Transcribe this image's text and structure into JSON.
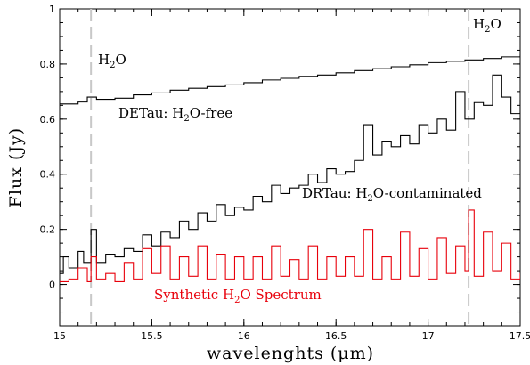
{
  "chart_data": {
    "type": "line",
    "xlabel": "wavelenghts (μm)",
    "ylabel": "Flux (Jy)",
    "xlim": [
      15,
      17.5
    ],
    "ylim": [
      -0.15,
      1.0
    ],
    "x_ticks": [
      "15",
      "15.5",
      "16",
      "16.5",
      "17",
      "17.5"
    ],
    "y_ticks": [
      "0",
      "0.2",
      "0.4",
      "0.6",
      "0.8",
      "1"
    ],
    "grid": false,
    "legend": "none",
    "reference_lines": [
      {
        "x": 15.17,
        "label_main": "H",
        "label_sub": "2",
        "label_tail": "O",
        "color": "#c8c8c8"
      },
      {
        "x": 17.22,
        "label_main": "H",
        "label_sub": "2",
        "label_tail": "O",
        "color": "#c8c8c8"
      }
    ],
    "series": [
      {
        "label_main": "DETau: H",
        "label_sub": "2",
        "label_tail": "O-free",
        "color": "#000000",
        "step": true,
        "points": [
          [
            15.0,
            0.655
          ],
          [
            15.1,
            0.662
          ],
          [
            15.15,
            0.68
          ],
          [
            15.2,
            0.672
          ],
          [
            15.3,
            0.676
          ],
          [
            15.4,
            0.688
          ],
          [
            15.5,
            0.695
          ],
          [
            15.6,
            0.705
          ],
          [
            15.7,
            0.712
          ],
          [
            15.8,
            0.718
          ],
          [
            15.9,
            0.724
          ],
          [
            16.0,
            0.732
          ],
          [
            16.1,
            0.742
          ],
          [
            16.2,
            0.748
          ],
          [
            16.3,
            0.755
          ],
          [
            16.4,
            0.76
          ],
          [
            16.5,
            0.768
          ],
          [
            16.6,
            0.776
          ],
          [
            16.7,
            0.783
          ],
          [
            16.8,
            0.79
          ],
          [
            16.9,
            0.797
          ],
          [
            17.0,
            0.805
          ],
          [
            17.1,
            0.81
          ],
          [
            17.2,
            0.815
          ],
          [
            17.3,
            0.82
          ],
          [
            17.4,
            0.826
          ],
          [
            17.5,
            0.835
          ]
        ]
      },
      {
        "label_main": "DRTau: H",
        "label_sub": "2",
        "label_tail": "O-contaminated",
        "color": "#000000",
        "step": true,
        "points": [
          [
            15.0,
            0.04
          ],
          [
            15.02,
            0.1
          ],
          [
            15.05,
            0.06
          ],
          [
            15.1,
            0.12
          ],
          [
            15.13,
            0.08
          ],
          [
            15.17,
            0.2
          ],
          [
            15.2,
            0.08
          ],
          [
            15.25,
            0.11
          ],
          [
            15.3,
            0.1
          ],
          [
            15.35,
            0.13
          ],
          [
            15.4,
            0.12
          ],
          [
            15.45,
            0.18
          ],
          [
            15.5,
            0.14
          ],
          [
            15.55,
            0.19
          ],
          [
            15.6,
            0.17
          ],
          [
            15.65,
            0.23
          ],
          [
            15.7,
            0.2
          ],
          [
            15.75,
            0.26
          ],
          [
            15.8,
            0.23
          ],
          [
            15.85,
            0.29
          ],
          [
            15.9,
            0.25
          ],
          [
            15.95,
            0.28
          ],
          [
            16.0,
            0.27
          ],
          [
            16.05,
            0.32
          ],
          [
            16.1,
            0.3
          ],
          [
            16.15,
            0.36
          ],
          [
            16.2,
            0.33
          ],
          [
            16.25,
            0.35
          ],
          [
            16.3,
            0.36
          ],
          [
            16.35,
            0.4
          ],
          [
            16.4,
            0.37
          ],
          [
            16.45,
            0.42
          ],
          [
            16.5,
            0.4
          ],
          [
            16.55,
            0.41
          ],
          [
            16.6,
            0.45
          ],
          [
            16.65,
            0.58
          ],
          [
            16.7,
            0.47
          ],
          [
            16.75,
            0.52
          ],
          [
            16.8,
            0.5
          ],
          [
            16.85,
            0.54
          ],
          [
            16.9,
            0.51
          ],
          [
            16.95,
            0.58
          ],
          [
            17.0,
            0.55
          ],
          [
            17.05,
            0.6
          ],
          [
            17.1,
            0.56
          ],
          [
            17.15,
            0.7
          ],
          [
            17.2,
            0.6
          ],
          [
            17.25,
            0.66
          ],
          [
            17.3,
            0.65
          ],
          [
            17.35,
            0.76
          ],
          [
            17.4,
            0.68
          ],
          [
            17.45,
            0.62
          ],
          [
            17.5,
            0.67
          ]
        ]
      },
      {
        "label_main": "Synthetic H",
        "label_sub": "2",
        "label_tail": "O Spectrum",
        "color": "#e8000b",
        "step": true,
        "points": [
          [
            15.0,
            0.01
          ],
          [
            15.05,
            0.02
          ],
          [
            15.1,
            0.06
          ],
          [
            15.15,
            0.01
          ],
          [
            15.17,
            0.1
          ],
          [
            15.2,
            0.02
          ],
          [
            15.25,
            0.04
          ],
          [
            15.3,
            0.01
          ],
          [
            15.35,
            0.08
          ],
          [
            15.4,
            0.02
          ],
          [
            15.45,
            0.13
          ],
          [
            15.5,
            0.04
          ],
          [
            15.55,
            0.14
          ],
          [
            15.6,
            0.02
          ],
          [
            15.65,
            0.1
          ],
          [
            15.7,
            0.03
          ],
          [
            15.75,
            0.14
          ],
          [
            15.8,
            0.02
          ],
          [
            15.85,
            0.11
          ],
          [
            15.9,
            0.02
          ],
          [
            15.95,
            0.1
          ],
          [
            16.0,
            0.02
          ],
          [
            16.05,
            0.1
          ],
          [
            16.1,
            0.02
          ],
          [
            16.15,
            0.14
          ],
          [
            16.2,
            0.03
          ],
          [
            16.25,
            0.09
          ],
          [
            16.3,
            0.02
          ],
          [
            16.35,
            0.14
          ],
          [
            16.4,
            0.02
          ],
          [
            16.45,
            0.1
          ],
          [
            16.5,
            0.03
          ],
          [
            16.55,
            0.1
          ],
          [
            16.6,
            0.03
          ],
          [
            16.65,
            0.2
          ],
          [
            16.7,
            0.02
          ],
          [
            16.75,
            0.1
          ],
          [
            16.8,
            0.02
          ],
          [
            16.85,
            0.19
          ],
          [
            16.9,
            0.03
          ],
          [
            16.95,
            0.13
          ],
          [
            17.0,
            0.02
          ],
          [
            17.05,
            0.17
          ],
          [
            17.1,
            0.04
          ],
          [
            17.15,
            0.14
          ],
          [
            17.2,
            0.05
          ],
          [
            17.22,
            0.27
          ],
          [
            17.25,
            0.03
          ],
          [
            17.3,
            0.19
          ],
          [
            17.35,
            0.05
          ],
          [
            17.4,
            0.15
          ],
          [
            17.45,
            0.02
          ],
          [
            17.5,
            0.04
          ]
        ]
      }
    ]
  }
}
